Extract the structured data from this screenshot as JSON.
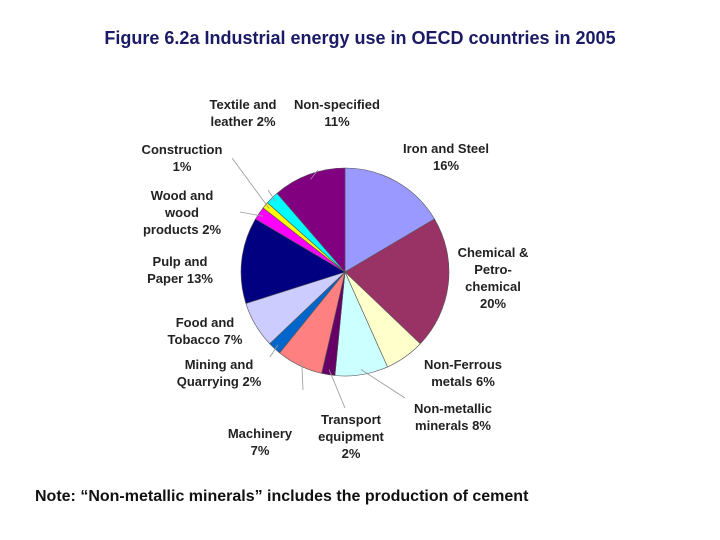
{
  "chart_data": {
    "type": "pie",
    "title": "Figure 6.2a Industrial energy use in OECD countries in 2005",
    "categories": [
      "Iron and Steel",
      "Chemical &\nPetro-\nchemical",
      "Non-Ferrous\nmetals",
      "Non-metallic\nminerals",
      "Transport\nequipment",
      "Machinery",
      "Mining and\nQuarrying",
      "Food and\nTobacco",
      "Pulp and\nPaper",
      "Wood and\nwood\nproducts",
      "Construction",
      "Textile and\nleather",
      "Non-specified"
    ],
    "values": [
      16,
      20,
      6,
      8,
      2,
      7,
      2,
      7,
      13,
      2,
      1,
      2,
      11
    ],
    "value_labels": [
      "16%",
      "20%",
      "6%",
      "8%",
      "2%",
      "7%",
      "2%",
      "7%",
      "13%",
      "2%",
      "1%",
      "2%",
      "11%"
    ],
    "colors": [
      "#9999ff",
      "#993366",
      "#ffffcc",
      "#ccffff",
      "#660066",
      "#ff8080",
      "#0066cc",
      "#ccccff",
      "#000080",
      "#ff00ff",
      "#ffff00",
      "#00ffff",
      "#800080"
    ],
    "note": "Note: “Non-metallic minerals” includes the production of cement"
  }
}
